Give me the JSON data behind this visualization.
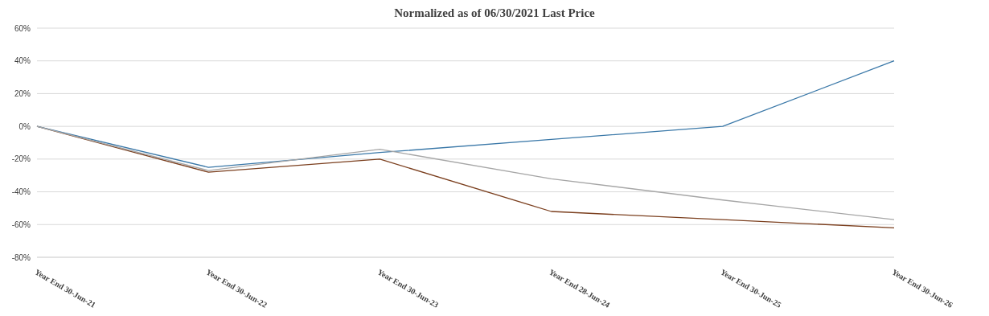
{
  "chart_data": {
    "type": "line",
    "title": "Normalized as of 06/30/2021 Last Price",
    "categories": [
      "Year End 30-Jun-21",
      "Year End 30-Jun-22",
      "Year End 30-Jun-23",
      "Year End 28-Jun-24",
      "Year End 30-Jun-25",
      "Year End 30-Jun-26"
    ],
    "series": [
      {
        "color": "#7b3f1e",
        "values": [
          0,
          -28,
          -20,
          -52,
          -57,
          -62
        ]
      },
      {
        "color": "#3a78a8",
        "values": [
          0,
          -25,
          -16,
          -8,
          0,
          40
        ]
      },
      {
        "color": "#a6a6a6",
        "values": [
          0,
          -27,
          -14,
          -32,
          -45,
          -57
        ]
      }
    ],
    "ylim": [
      -80,
      60
    ],
    "yticks": [
      {
        "value": -80,
        "label": "-80%"
      },
      {
        "value": -60,
        "label": "-60%"
      },
      {
        "value": -40,
        "label": "-40%"
      },
      {
        "value": -20,
        "label": "-20%"
      },
      {
        "value": 0,
        "label": "0%"
      },
      {
        "value": 20,
        "label": "20%"
      },
      {
        "value": 40,
        "label": "40%"
      },
      {
        "value": 60,
        "label": "60%"
      }
    ],
    "grid": "y",
    "marker": "none",
    "line_style": "solid",
    "legend": false
  }
}
